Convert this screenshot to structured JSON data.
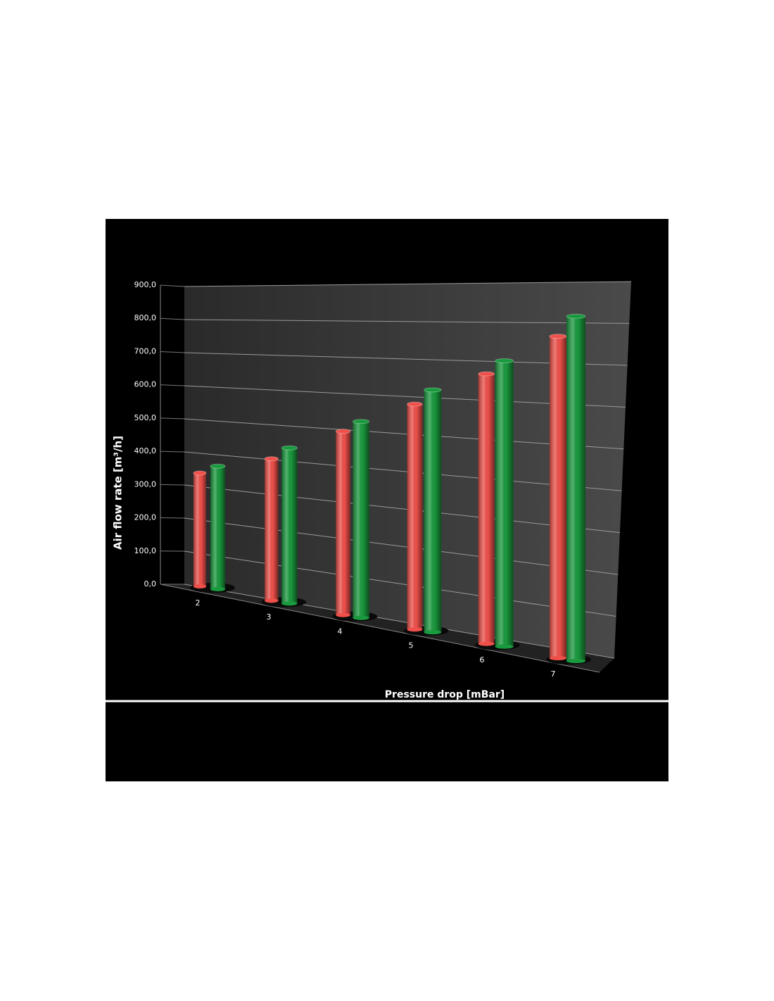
{
  "chart_data": {
    "type": "bar3d",
    "x_label": "Pressure drop [mBar]",
    "y_label": "Air flow rate [m³/h]",
    "categories": [
      "2",
      "3",
      "4",
      "5",
      "6",
      "7"
    ],
    "series": [
      {
        "color": "#f0504a",
        "values": [
          350,
          415,
          510,
          595,
          680,
          775
        ]
      },
      {
        "color": "#1a9a3e",
        "values": [
          380,
          455,
          545,
          640,
          720,
          830
        ]
      }
    ],
    "ylim": [
      0,
      900
    ],
    "yticks": [
      {
        "value": 0,
        "label": "0,0"
      },
      {
        "value": 100,
        "label": "100,0"
      },
      {
        "value": 200,
        "label": "200,0"
      },
      {
        "value": 300,
        "label": "300,0"
      },
      {
        "value": 400,
        "label": "400,0"
      },
      {
        "value": 500,
        "label": "500,0"
      },
      {
        "value": 600,
        "label": "600,0"
      },
      {
        "value": 700,
        "label": "700,0"
      },
      {
        "value": 800,
        "label": "800,0"
      },
      {
        "value": 900,
        "label": "900,0"
      }
    ],
    "grid": true
  }
}
